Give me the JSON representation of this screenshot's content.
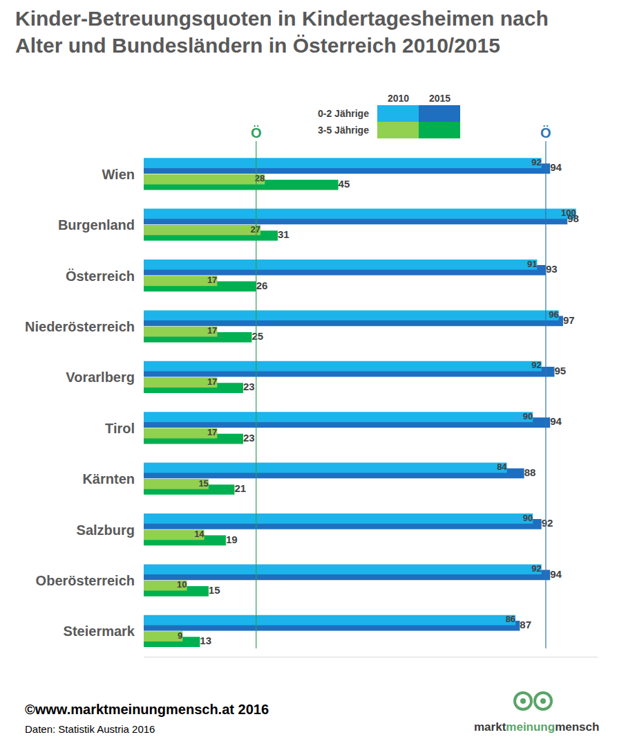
{
  "chart_data": {
    "type": "bar",
    "orientation": "horizontal",
    "title": "Kinder-Betreuungsquoten in Kindertagesheimen nach\nAlter und Bundesländern in Österreich 2010/2015",
    "categories": [
      "Wien",
      "Burgenland",
      "Österreich",
      "Niederösterreich",
      "Vorarlberg",
      "Tirol",
      "Kärnten",
      "Salzburg",
      "Oberösterreich",
      "Steiermark"
    ],
    "series": [
      {
        "name": "0-2 Jährige",
        "year": "2010",
        "color": "#1cb4ea",
        "values": [
          92,
          100,
          91,
          96,
          92,
          90,
          84,
          90,
          92,
          86
        ]
      },
      {
        "name": "0-2 Jährige",
        "year": "2015",
        "color": "#1f6fc0",
        "values": [
          94,
          98,
          93,
          97,
          95,
          94,
          88,
          92,
          94,
          87
        ]
      },
      {
        "name": "3-5 Jährige",
        "year": "2010",
        "color": "#92d050",
        "values": [
          28,
          27,
          17,
          17,
          17,
          17,
          15,
          14,
          10,
          9
        ]
      },
      {
        "name": "3-5 Jährige",
        "year": "2015",
        "color": "#00b050",
        "values": [
          45,
          31,
          26,
          25,
          23,
          23,
          21,
          19,
          15,
          13
        ]
      }
    ],
    "xlim": [
      0,
      105
    ],
    "xticks": [],
    "tick_labels": "y",
    "grid": false,
    "data_labels": true,
    "annotations": [
      {
        "text": "Ö",
        "x": 26,
        "color": "#2e9e5b"
      },
      {
        "text": "Ö",
        "x": 93,
        "color": "#2e75b6"
      }
    ],
    "footer": {
      "copyright": "©www.marktmeinungmensch.at 2016",
      "source": "Daten: Statistik Austria 2016",
      "logo": [
        "markt",
        "meinung",
        "mensch"
      ]
    }
  }
}
